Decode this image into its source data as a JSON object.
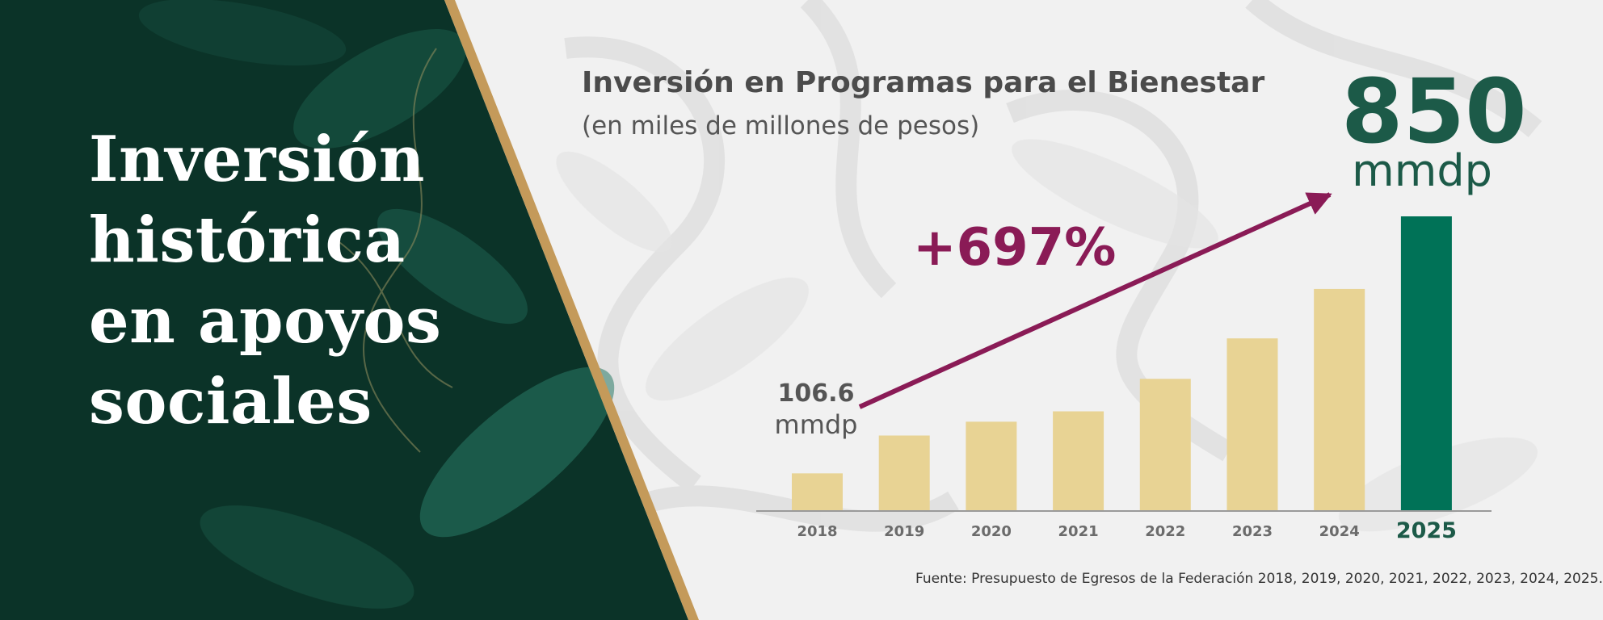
{
  "headline": [
    "Inversión",
    "histórica",
    "en apoyos",
    "sociales"
  ],
  "colors": {
    "panel_dark": "#0b3328",
    "gold_stripe": "#c49a5a",
    "bar_gold": "#e8d394",
    "bar_green": "#007257",
    "accent_magenta": "#8a1b56",
    "text_green": "#1c5a48"
  },
  "chart_data": {
    "type": "bar",
    "title": "Inversión en Programas para el Bienestar",
    "subtitle": "(en miles de millones de pesos)",
    "categories": [
      "2018",
      "2019",
      "2020",
      "2021",
      "2022",
      "2023",
      "2024",
      "2025"
    ],
    "values": [
      106.6,
      216,
      256,
      286,
      380,
      497,
      640,
      850
    ],
    "highlight_category": "2025",
    "ylim": [
      0,
      850
    ],
    "grid": false,
    "annotations": {
      "first_value": "106.6",
      "first_unit": "mmdp",
      "last_value": "850",
      "last_unit": "mmdp",
      "growth": "+697%"
    },
    "source": "Fuente: Presupuesto de Egresos de la Federación 2018, 2019, 2020, 2021, 2022, 2023, 2024, 2025."
  }
}
